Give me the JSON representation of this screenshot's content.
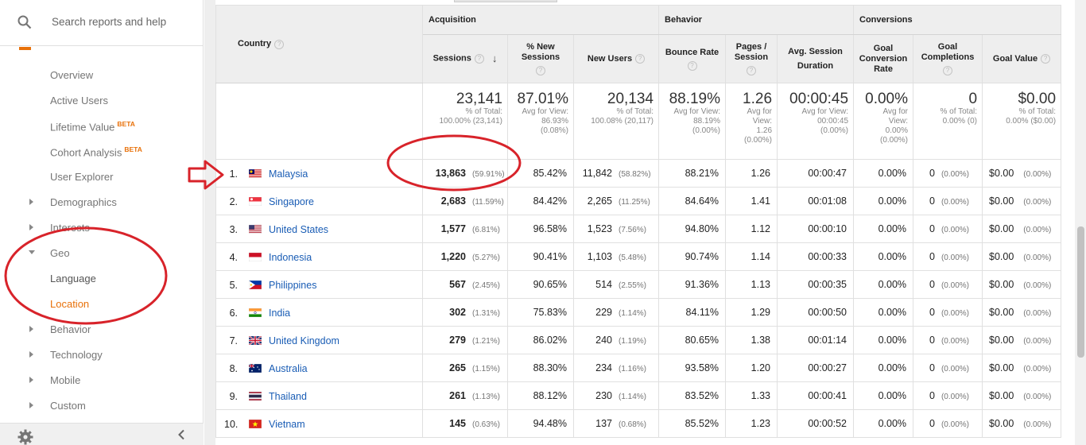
{
  "sidebar": {
    "search_placeholder": "Search reports and help",
    "items": [
      {
        "label": "Overview"
      },
      {
        "label": "Active Users"
      },
      {
        "label": "Lifetime Value",
        "badge": "BETA"
      },
      {
        "label": "Cohort Analysis",
        "badge": "BETA"
      },
      {
        "label": "User Explorer"
      },
      {
        "label": "Demographics"
      },
      {
        "label": "Interests"
      },
      {
        "label": "Geo"
      },
      {
        "label": "Language"
      },
      {
        "label": "Location"
      },
      {
        "label": "Behavior"
      },
      {
        "label": "Technology"
      },
      {
        "label": "Mobile"
      },
      {
        "label": "Custom"
      }
    ]
  },
  "table": {
    "groups": {
      "acquisition": "Acquisition",
      "behavior": "Behavior",
      "conversions": "Conversions"
    },
    "columns": {
      "country": "Country",
      "sessions": "Sessions",
      "new_sessions": "% New Sessions",
      "new_users": "New Users",
      "bounce_rate": "Bounce Rate",
      "pages_session": "Pages / Session",
      "avg_duration": "Avg. Session Duration",
      "goal_conv_rate": "Goal Conversion Rate",
      "goal_completions": "Goal Completions",
      "goal_value": "Goal Value"
    },
    "totals": {
      "sessions": {
        "big": "23,141",
        "l1": "% of Total:",
        "l2": "100.00% (23,141)"
      },
      "new_sessions": {
        "big": "87.01%",
        "l1": "Avg for View:",
        "l2": "86.93%",
        "l3": "(0.08%)"
      },
      "new_users": {
        "big": "20,134",
        "l1": "% of Total:",
        "l2": "100.08% (20,117)"
      },
      "bounce_rate": {
        "big": "88.19%",
        "l1": "Avg for View:",
        "l2": "88.19%",
        "l3": "(0.00%)"
      },
      "pages_session": {
        "big": "1.26",
        "l1": "Avg for",
        "l2": "View:",
        "l3": "1.26",
        "l4": "(0.00%)"
      },
      "avg_duration": {
        "big": "00:00:45",
        "l1": "Avg for View:",
        "l2": "00:00:45",
        "l3": "(0.00%)"
      },
      "goal_conv_rate": {
        "big": "0.00%",
        "l1": "Avg for",
        "l2": "View:",
        "l3": "0.00%",
        "l4": "(0.00%)"
      },
      "goal_completions": {
        "big": "0",
        "l1": "% of Total:",
        "l2": "0.00% (0)"
      },
      "goal_value": {
        "big": "$0.00",
        "l1": "% of Total:",
        "l2": "0.00% ($0.00)"
      }
    },
    "rows": [
      {
        "idx": "1.",
        "country": "Malaysia",
        "flag": "my",
        "sessions": "13,863",
        "sessions_pct": "(59.91%)",
        "new_sessions": "85.42%",
        "new_users": "11,842",
        "new_users_pct": "(58.82%)",
        "bounce": "88.21%",
        "pages": "1.26",
        "duration": "00:00:47",
        "conv": "0.00%",
        "comp": "0",
        "comp_pct": "(0.00%)",
        "value": "$0.00",
        "value_pct": "(0.00%)"
      },
      {
        "idx": "2.",
        "country": "Singapore",
        "flag": "sg",
        "sessions": "2,683",
        "sessions_pct": "(11.59%)",
        "new_sessions": "84.42%",
        "new_users": "2,265",
        "new_users_pct": "(11.25%)",
        "bounce": "84.64%",
        "pages": "1.41",
        "duration": "00:01:08",
        "conv": "0.00%",
        "comp": "0",
        "comp_pct": "(0.00%)",
        "value": "$0.00",
        "value_pct": "(0.00%)"
      },
      {
        "idx": "3.",
        "country": "United States",
        "flag": "us",
        "sessions": "1,577",
        "sessions_pct": "(6.81%)",
        "new_sessions": "96.58%",
        "new_users": "1,523",
        "new_users_pct": "(7.56%)",
        "bounce": "94.80%",
        "pages": "1.12",
        "duration": "00:00:10",
        "conv": "0.00%",
        "comp": "0",
        "comp_pct": "(0.00%)",
        "value": "$0.00",
        "value_pct": "(0.00%)"
      },
      {
        "idx": "4.",
        "country": "Indonesia",
        "flag": "id",
        "sessions": "1,220",
        "sessions_pct": "(5.27%)",
        "new_sessions": "90.41%",
        "new_users": "1,103",
        "new_users_pct": "(5.48%)",
        "bounce": "90.74%",
        "pages": "1.14",
        "duration": "00:00:33",
        "conv": "0.00%",
        "comp": "0",
        "comp_pct": "(0.00%)",
        "value": "$0.00",
        "value_pct": "(0.00%)"
      },
      {
        "idx": "5.",
        "country": "Philippines",
        "flag": "ph",
        "sessions": "567",
        "sessions_pct": "(2.45%)",
        "new_sessions": "90.65%",
        "new_users": "514",
        "new_users_pct": "(2.55%)",
        "bounce": "91.36%",
        "pages": "1.13",
        "duration": "00:00:35",
        "conv": "0.00%",
        "comp": "0",
        "comp_pct": "(0.00%)",
        "value": "$0.00",
        "value_pct": "(0.00%)"
      },
      {
        "idx": "6.",
        "country": "India",
        "flag": "in",
        "sessions": "302",
        "sessions_pct": "(1.31%)",
        "new_sessions": "75.83%",
        "new_users": "229",
        "new_users_pct": "(1.14%)",
        "bounce": "84.11%",
        "pages": "1.29",
        "duration": "00:00:50",
        "conv": "0.00%",
        "comp": "0",
        "comp_pct": "(0.00%)",
        "value": "$0.00",
        "value_pct": "(0.00%)"
      },
      {
        "idx": "7.",
        "country": "United Kingdom",
        "flag": "gb",
        "sessions": "279",
        "sessions_pct": "(1.21%)",
        "new_sessions": "86.02%",
        "new_users": "240",
        "new_users_pct": "(1.19%)",
        "bounce": "80.65%",
        "pages": "1.38",
        "duration": "00:01:14",
        "conv": "0.00%",
        "comp": "0",
        "comp_pct": "(0.00%)",
        "value": "$0.00",
        "value_pct": "(0.00%)"
      },
      {
        "idx": "8.",
        "country": "Australia",
        "flag": "au",
        "sessions": "265",
        "sessions_pct": "(1.15%)",
        "new_sessions": "88.30%",
        "new_users": "234",
        "new_users_pct": "(1.16%)",
        "bounce": "93.58%",
        "pages": "1.20",
        "duration": "00:00:27",
        "conv": "0.00%",
        "comp": "0",
        "comp_pct": "(0.00%)",
        "value": "$0.00",
        "value_pct": "(0.00%)"
      },
      {
        "idx": "9.",
        "country": "Thailand",
        "flag": "th",
        "sessions": "261",
        "sessions_pct": "(1.13%)",
        "new_sessions": "88.12%",
        "new_users": "230",
        "new_users_pct": "(1.14%)",
        "bounce": "83.52%",
        "pages": "1.33",
        "duration": "00:00:41",
        "conv": "0.00%",
        "comp": "0",
        "comp_pct": "(0.00%)",
        "value": "$0.00",
        "value_pct": "(0.00%)"
      },
      {
        "idx": "10.",
        "country": "Vietnam",
        "flag": "vn",
        "sessions": "145",
        "sessions_pct": "(0.63%)",
        "new_sessions": "94.48%",
        "new_users": "137",
        "new_users_pct": "(0.68%)",
        "bounce": "85.52%",
        "pages": "1.23",
        "duration": "00:00:52",
        "conv": "0.00%",
        "comp": "0",
        "comp_pct": "(0.00%)",
        "value": "$0.00",
        "value_pct": "(0.00%)"
      }
    ]
  },
  "colors": {
    "accent": "#e8710a",
    "link": "#1a5db5",
    "annotation": "#d8232a"
  }
}
